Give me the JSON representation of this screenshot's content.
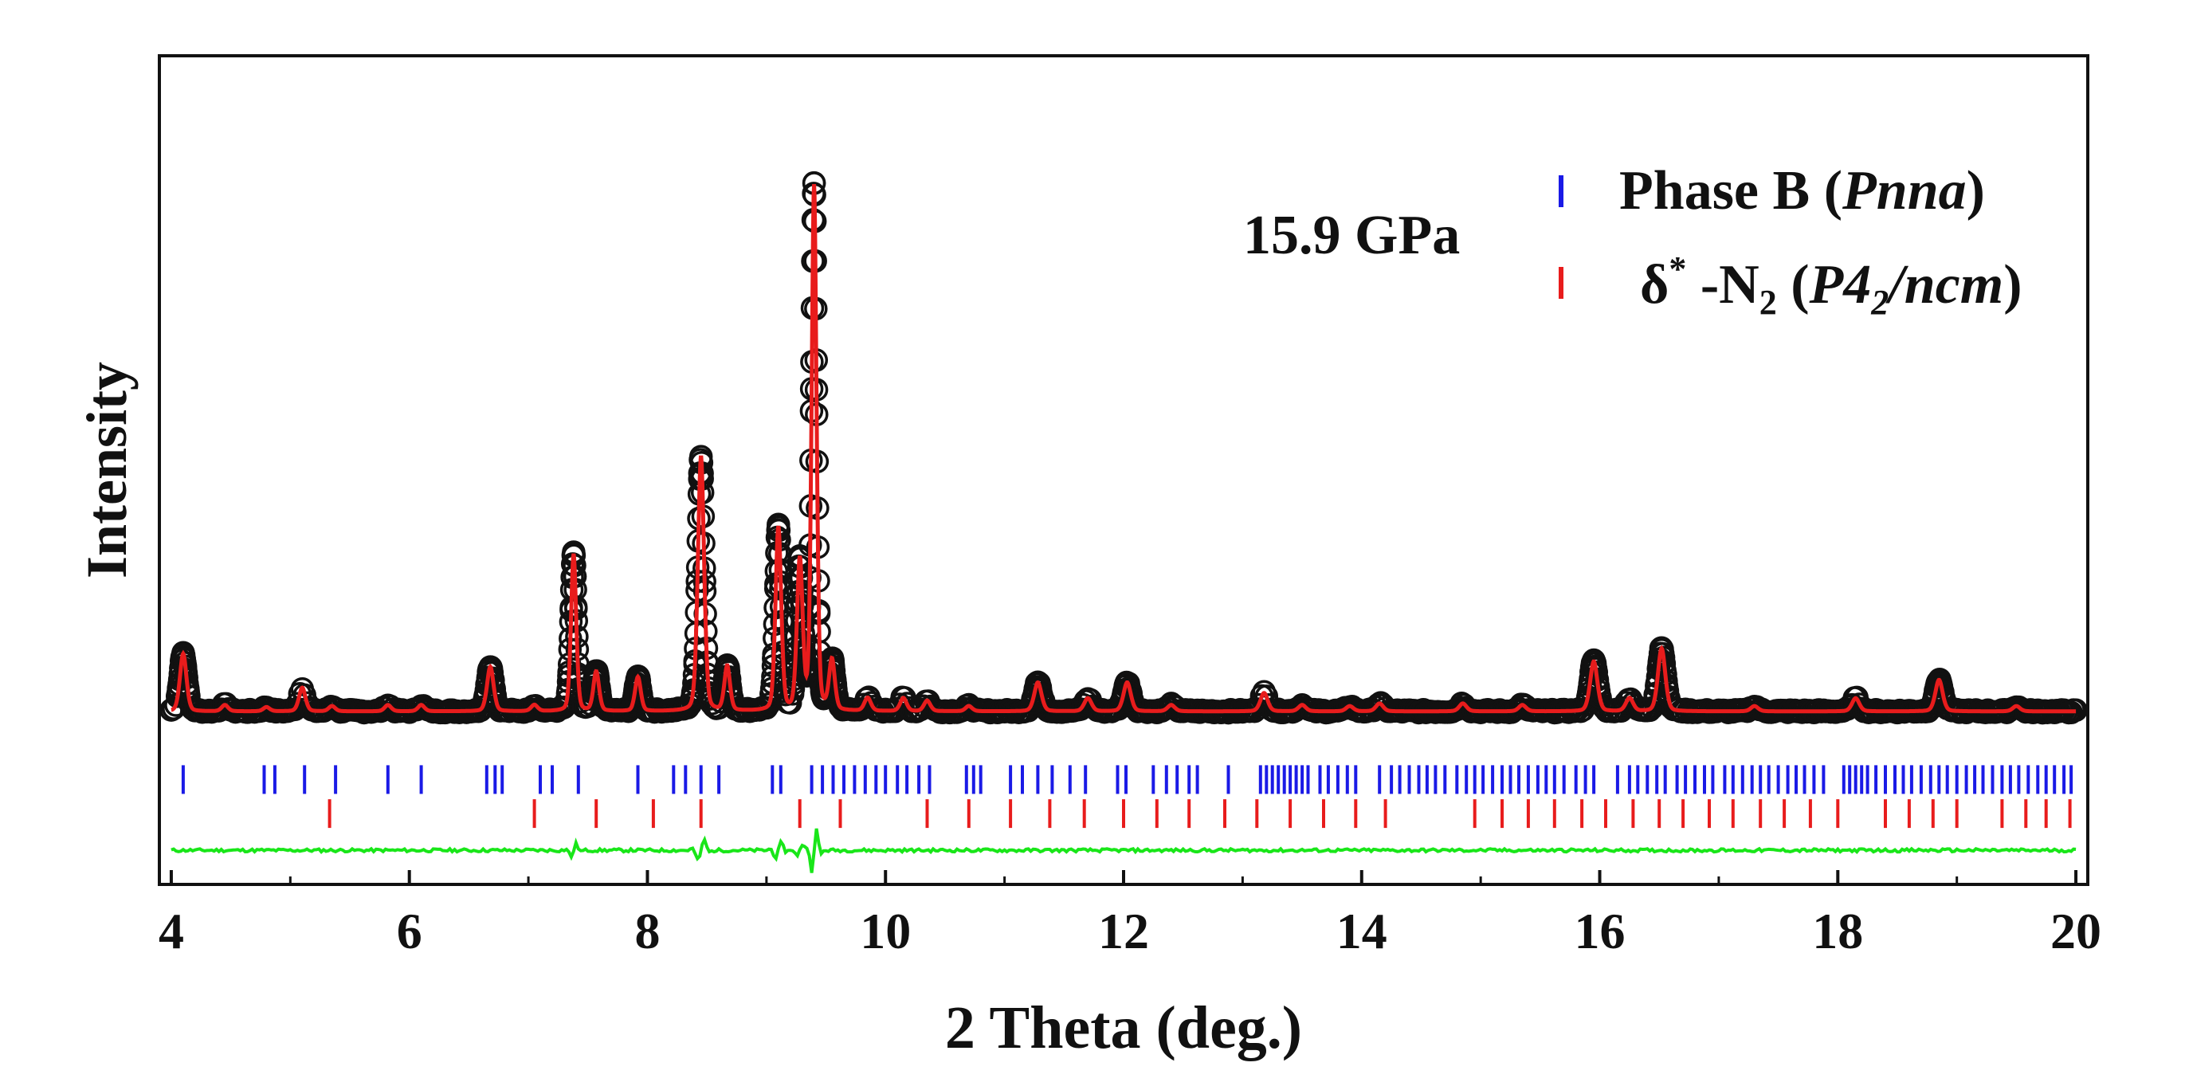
{
  "chart_data": {
    "type": "scatter",
    "title": "",
    "xlabel": "2 Theta (deg.)",
    "ylabel": "Intensity",
    "xlim": [
      3.9,
      20.1
    ],
    "ylim": [
      -0.3,
      1.28
    ],
    "xticks": [
      4,
      6,
      8,
      10,
      12,
      14,
      16,
      18,
      20
    ],
    "xtick_labels": [
      "4",
      "6",
      "8",
      "10",
      "12",
      "14",
      "16",
      "18",
      "20"
    ],
    "annotation": "15.9 GPa",
    "legend": {
      "placement": "top-right",
      "entries": [
        {
          "series": "phaseB_ticks",
          "color": "#1a1ae6",
          "prefix": "Phase B (",
          "italic": "Pnna",
          "suffix": ")"
        },
        {
          "series": "delta_ticks",
          "color": "#e81c1c",
          "prefix": "δ",
          "sup": "*",
          "mid": " -N",
          "sub": "2",
          "paren_open": " (",
          "italic_a": "P4",
          "italic_sub": "2",
          "italic_b": "/ncm",
          "suffix": ")"
        }
      ]
    },
    "baseline": 0.03,
    "peaks": [
      {
        "x": 4.1,
        "h": 0.11,
        "w": 0.04
      },
      {
        "x": 4.45,
        "h": 0.012,
        "w": 0.04
      },
      {
        "x": 4.8,
        "h": 0.008,
        "w": 0.04
      },
      {
        "x": 5.1,
        "h": 0.045,
        "w": 0.04
      },
      {
        "x": 5.35,
        "h": 0.01,
        "w": 0.04
      },
      {
        "x": 5.82,
        "h": 0.012,
        "w": 0.04
      },
      {
        "x": 6.1,
        "h": 0.012,
        "w": 0.04
      },
      {
        "x": 6.68,
        "h": 0.085,
        "w": 0.04
      },
      {
        "x": 7.05,
        "h": 0.012,
        "w": 0.04
      },
      {
        "x": 7.38,
        "h": 0.3,
        "w": 0.032
      },
      {
        "x": 7.57,
        "h": 0.075,
        "w": 0.035
      },
      {
        "x": 7.92,
        "h": 0.065,
        "w": 0.035
      },
      {
        "x": 8.45,
        "h": 0.485,
        "w": 0.038
      },
      {
        "x": 8.67,
        "h": 0.085,
        "w": 0.035
      },
      {
        "x": 9.1,
        "h": 0.35,
        "w": 0.035
      },
      {
        "x": 9.28,
        "h": 0.285,
        "w": 0.035
      },
      {
        "x": 9.4,
        "h": 1.0,
        "w": 0.03
      },
      {
        "x": 9.55,
        "h": 0.095,
        "w": 0.035
      },
      {
        "x": 9.85,
        "h": 0.025,
        "w": 0.04
      },
      {
        "x": 10.15,
        "h": 0.025,
        "w": 0.04
      },
      {
        "x": 10.35,
        "h": 0.02,
        "w": 0.04
      },
      {
        "x": 10.7,
        "h": 0.01,
        "w": 0.04
      },
      {
        "x": 11.28,
        "h": 0.055,
        "w": 0.045
      },
      {
        "x": 11.7,
        "h": 0.025,
        "w": 0.045
      },
      {
        "x": 12.03,
        "h": 0.055,
        "w": 0.045
      },
      {
        "x": 12.4,
        "h": 0.012,
        "w": 0.045
      },
      {
        "x": 13.18,
        "h": 0.035,
        "w": 0.045
      },
      {
        "x": 13.5,
        "h": 0.012,
        "w": 0.045
      },
      {
        "x": 13.9,
        "h": 0.01,
        "w": 0.045
      },
      {
        "x": 14.15,
        "h": 0.015,
        "w": 0.045
      },
      {
        "x": 14.85,
        "h": 0.015,
        "w": 0.045
      },
      {
        "x": 15.35,
        "h": 0.012,
        "w": 0.045
      },
      {
        "x": 15.95,
        "h": 0.095,
        "w": 0.045
      },
      {
        "x": 16.25,
        "h": 0.025,
        "w": 0.045
      },
      {
        "x": 16.52,
        "h": 0.12,
        "w": 0.045
      },
      {
        "x": 17.3,
        "h": 0.01,
        "w": 0.045
      },
      {
        "x": 18.15,
        "h": 0.025,
        "w": 0.045
      },
      {
        "x": 18.85,
        "h": 0.06,
        "w": 0.045
      },
      {
        "x": 19.5,
        "h": 0.01,
        "w": 0.045
      }
    ],
    "series": [
      {
        "name": "observed",
        "style": "open-circle",
        "color": "#111111"
      },
      {
        "name": "calculated",
        "style": "line",
        "color": "#e81c1c"
      },
      {
        "name": "difference",
        "style": "line",
        "color": "#19e619",
        "offset": -0.235
      }
    ],
    "phaseB_ticks": {
      "color": "#1a1ae6",
      "y": -0.1,
      "positions": [
        4.1,
        4.78,
        4.87,
        5.12,
        5.38,
        5.82,
        6.1,
        6.65,
        6.72,
        6.78,
        7.1,
        7.2,
        7.42,
        7.92,
        8.22,
        8.32,
        8.45,
        8.6,
        9.05,
        9.12,
        9.38,
        9.47,
        9.56,
        9.65,
        9.74,
        9.83,
        9.92,
        10.0,
        10.1,
        10.18,
        10.28,
        10.37,
        10.68,
        10.74,
        10.8,
        11.05,
        11.15,
        11.28,
        11.4,
        11.55,
        11.68,
        11.95,
        12.02,
        12.25,
        12.36,
        12.45,
        12.55,
        12.62,
        12.88,
        13.15,
        13.2,
        13.25,
        13.3,
        13.35,
        13.4,
        13.45,
        13.5,
        13.55,
        13.65,
        13.72,
        13.8,
        13.88,
        13.95,
        14.15,
        14.25,
        14.32,
        14.4,
        14.48,
        14.55,
        14.62,
        14.7,
        14.8,
        14.88,
        14.95,
        15.02,
        15.1,
        15.18,
        15.25,
        15.32,
        15.4,
        15.48,
        15.55,
        15.62,
        15.7,
        15.8,
        15.88,
        15.95,
        16.15,
        16.25,
        16.32,
        16.4,
        16.48,
        16.55,
        16.65,
        16.72,
        16.8,
        16.88,
        16.95,
        17.05,
        17.12,
        17.2,
        17.28,
        17.35,
        17.42,
        17.5,
        17.58,
        17.65,
        17.72,
        17.8,
        17.88,
        18.05,
        18.1,
        18.15,
        18.2,
        18.25,
        18.32,
        18.4,
        18.48,
        18.55,
        18.62,
        18.7,
        18.78,
        18.85,
        18.92,
        19.0,
        19.08,
        19.15,
        19.22,
        19.3,
        19.38,
        19.45,
        19.52,
        19.6,
        19.68,
        19.75,
        19.82,
        19.9,
        19.96
      ]
    },
    "delta_ticks": {
      "color": "#e81c1c",
      "y": -0.165,
      "positions": [
        5.33,
        7.05,
        7.57,
        8.05,
        8.45,
        9.28,
        9.62,
        10.35,
        10.7,
        11.05,
        11.38,
        11.67,
        12.0,
        12.28,
        12.55,
        12.85,
        13.12,
        13.4,
        13.68,
        13.95,
        14.2,
        14.95,
        15.18,
        15.4,
        15.62,
        15.85,
        16.05,
        16.28,
        16.5,
        16.7,
        16.92,
        17.12,
        17.35,
        17.55,
        17.77,
        18.0,
        18.4,
        18.6,
        18.8,
        19.0,
        19.38,
        19.58,
        19.75,
        19.95
      ]
    },
    "observed_x_range": [
      4.0,
      20.0
    ],
    "observed_step": 0.02
  }
}
